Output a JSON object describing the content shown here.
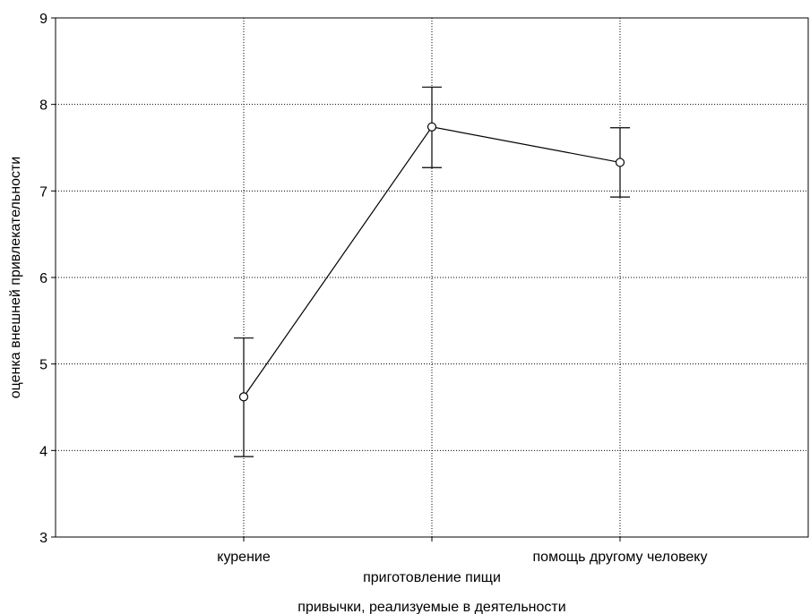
{
  "chart_data": {
    "type": "line",
    "title": "",
    "xlabel": "привычки, реализуемые в деятельности",
    "ylabel": "оценка внешней привлекательности",
    "categories": [
      "курение",
      "приготовление пищи",
      "помощь другому человеку"
    ],
    "series": [
      {
        "values": [
          4.62,
          7.74,
          7.33
        ],
        "error_low": [
          3.93,
          7.27,
          6.93
        ],
        "error_high": [
          5.3,
          8.2,
          7.73
        ]
      }
    ],
    "ylim": [
      3,
      9
    ],
    "yticks": [
      "3",
      "4",
      "5",
      "6",
      "7",
      "8",
      "9"
    ],
    "grid": true,
    "colors": {
      "line": "#000000",
      "marker_fill": "#ffffff",
      "grid": "#000000",
      "background": "#ffffff"
    }
  }
}
